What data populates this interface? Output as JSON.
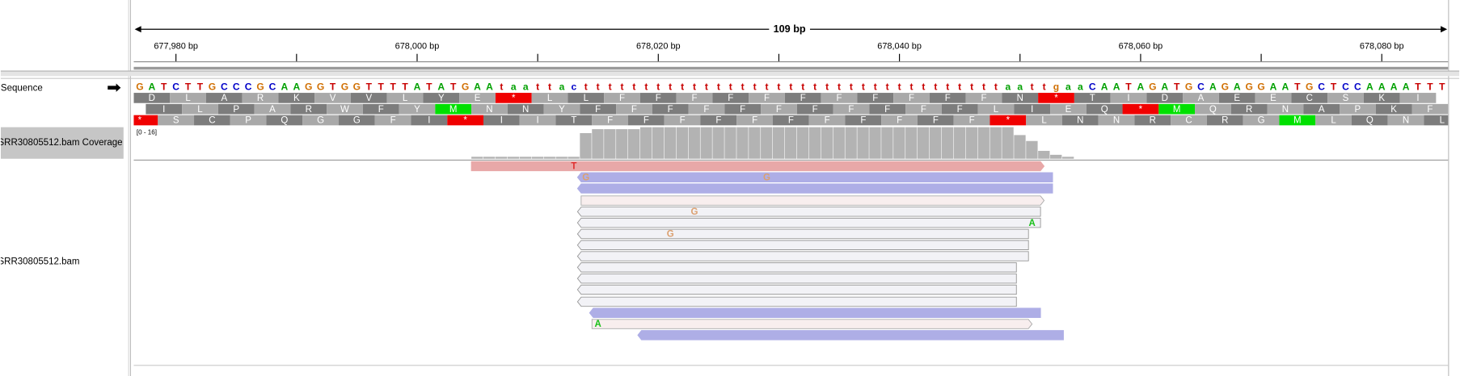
{
  "ruler": {
    "span_label": "109 bp",
    "xlim": [
      677976.5,
      678085.5
    ],
    "xticks": [
      {
        "value": 677980,
        "label": "677,980 bp"
      },
      {
        "value": 678000,
        "label": "678,000 bp"
      },
      {
        "value": 678020,
        "label": "678,020 bp"
      },
      {
        "value": 678040,
        "label": "678,040 bp"
      },
      {
        "value": 678060,
        "label": "678,060 bp"
      },
      {
        "value": 678080,
        "label": "678,080 bp"
      }
    ],
    "minor_xticks": [
      677990,
      678010,
      678030,
      678050,
      678070
    ]
  },
  "tracks": {
    "sequence": "Sequence",
    "coverage": "SRR30805512.bam Coverage",
    "alignments": "SRR30805512.bam"
  },
  "sequence": {
    "bases": [
      "G",
      "A",
      "T",
      "C",
      "T",
      "T",
      "G",
      "C",
      "C",
      "C",
      "G",
      "C",
      "A",
      "A",
      "G",
      "G",
      "T",
      "G",
      "G",
      "T",
      "T",
      "T",
      "T",
      "A",
      "T",
      "A",
      "T",
      "G",
      "A",
      "A",
      "t",
      "a",
      "a",
      "t",
      "t",
      "a",
      "c",
      "t",
      "t",
      "t",
      "t",
      "t",
      "t",
      "t",
      "t",
      "t",
      "t",
      "t",
      "t",
      "t",
      "t",
      "t",
      "t",
      "t",
      "t",
      "t",
      "t",
      "t",
      "t",
      "t",
      "t",
      "t",
      "t",
      "t",
      "t",
      "t",
      "t",
      "t",
      "t",
      "t",
      "t",
      "t",
      "a",
      "a",
      "t",
      "t",
      "g",
      "a",
      "a",
      "C",
      "A",
      "A",
      "T",
      "A",
      "G",
      "A",
      "T",
      "G",
      "C",
      "A",
      "G",
      "A",
      "G",
      "G",
      "A",
      "A",
      "T",
      "G",
      "C",
      "T",
      "C",
      "C",
      "A",
      "A",
      "A",
      "A",
      "T",
      "T",
      "T"
    ],
    "base_colors": {
      "A": "#00a000",
      "C": "#0000c8",
      "G": "#d17105",
      "T": "#c80000"
    }
  },
  "translation": {
    "frames": [
      [
        "D",
        "L",
        "A",
        "R",
        "K",
        "V",
        "V",
        "L",
        "Y",
        "E",
        "*",
        "L",
        "L",
        "F",
        "F",
        "F",
        "F",
        "F",
        "F",
        "F",
        "F",
        "F",
        "F",
        "F",
        "N",
        "*",
        "T",
        "I",
        "D",
        "A",
        "E",
        "E",
        "C",
        "S",
        "K",
        "I"
      ],
      [
        "I",
        "L",
        "P",
        "A",
        "R",
        "W",
        "F",
        "Y",
        "M",
        "N",
        "N",
        "Y",
        "F",
        "F",
        "F",
        "F",
        "F",
        "F",
        "F",
        "F",
        "F",
        "F",
        "F",
        "L",
        "I",
        "E",
        "Q",
        "*",
        "M",
        "Q",
        "R",
        "N",
        "A",
        "P",
        "K",
        "F"
      ],
      [
        "*",
        "S",
        "C",
        "P",
        "Q",
        "G",
        "G",
        "F",
        "I",
        "*",
        "I",
        "I",
        "T",
        "F",
        "F",
        "F",
        "F",
        "F",
        "F",
        "F",
        "F",
        "F",
        "F",
        "F",
        "*",
        "L",
        "N",
        "N",
        "R",
        "C",
        "R",
        "G",
        "M",
        "L",
        "Q",
        "N",
        "L"
      ]
    ],
    "highlight": {
      "*": "#f00000",
      "M": "#00e000"
    }
  },
  "coverage": {
    "range_label": "[0 - 16]",
    "ylim": [
      0,
      16
    ],
    "values": [
      0,
      0,
      0,
      0,
      0,
      0,
      0,
      0,
      0,
      0,
      0,
      0,
      0,
      0,
      0,
      0,
      0,
      0,
      0,
      0,
      0,
      0,
      0,
      0,
      0,
      0,
      0,
      0,
      1,
      1,
      1,
      1,
      1,
      1,
      1,
      1,
      1,
      13,
      15,
      15,
      15,
      15,
      16,
      16,
      16,
      16,
      16,
      16,
      16,
      16,
      16,
      16,
      16,
      16,
      16,
      16,
      16,
      16,
      16,
      16,
      16,
      16,
      16,
      16,
      16,
      16,
      16,
      16,
      16,
      16,
      16,
      16,
      16,
      12,
      9,
      4,
      2,
      1,
      0,
      0,
      0,
      0,
      0,
      0,
      0,
      0,
      0,
      0,
      0,
      0,
      0,
      0,
      0,
      0,
      0,
      0,
      0,
      0,
      0,
      0,
      0,
      0,
      0,
      0,
      0,
      0,
      0,
      0,
      0
    ]
  },
  "alignments": {
    "mismatches": [
      "T",
      "G",
      "G",
      "G",
      "A",
      "G",
      "A"
    ]
  }
}
